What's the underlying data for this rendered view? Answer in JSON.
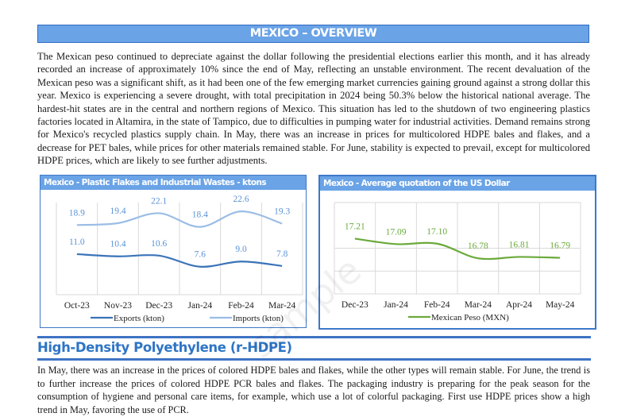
{
  "overview": {
    "title": "MEXICO – OVERVIEW",
    "paragraph": "The Mexican peso continued to depreciate against the dollar following the presidential elections earlier this month, and it has already recorded an increase of approximately 10% since the end of May, reflecting an unstable environment. The recent devaluation of the Mexican peso was a significant shift, as it had been one of the few emerging market currencies gaining ground against a strong dollar this year. Mexico is experiencing a severe drought, with total precipitation in 2024 being 50.3% below the historical national average. The hardest-hit states are in the central and northern regions of Mexico. This situation has led to the shutdown of two engineering plastics factories located in Altamira, in the state of Tampico, due to difficulties in pumping water for industrial activities. Demand remains strong for Mexico's recycled plastics supply chain. In May, there was an increase in prices for multicolored HDPE bales and flakes, and a decrease for PET bales, while prices for other materials remained stable. For June, stability is expected to prevail, except for multicolored HDPE prices, which are likely to see further adjustments."
  },
  "chart_data": [
    {
      "type": "line",
      "title": "Mexico - Plastic Flakes and Industrial Wastes - ktons",
      "categories": [
        "Oct-23",
        "Nov-23",
        "Dec-23",
        "Jan-24",
        "Feb-24",
        "Mar-24"
      ],
      "series": [
        {
          "name": "Exports (kton)",
          "values": [
            11.0,
            10.4,
            10.6,
            7.6,
            9.0,
            7.8
          ],
          "color": "#3a73b8"
        },
        {
          "name": "Imports (kton)",
          "values": [
            18.9,
            19.4,
            22.1,
            18.4,
            22.6,
            19.3
          ],
          "color": "#9bbde6"
        }
      ],
      "ylim": [
        0,
        25
      ],
      "grid": "vertical",
      "legend": "bottom",
      "label_color": "#5a93d6"
    },
    {
      "type": "line",
      "title": "Mexico - Average quotation of the US Dollar",
      "categories": [
        "Dec-23",
        "Jan-24",
        "Feb-24",
        "Mar-24",
        "Apr-24",
        "May-24"
      ],
      "series": [
        {
          "name": "Mexican Peso (MXN)",
          "values": [
            17.21,
            17.09,
            17.1,
            16.78,
            16.81,
            16.79
          ],
          "color": "#6aaa3a"
        }
      ],
      "ylim": [
        16,
        18
      ],
      "grid": "both",
      "legend": "bottom",
      "label_color": "#6aaa3a"
    }
  ],
  "hdpe": {
    "title": "High-Density Polyethylene (r-HDPE)",
    "paragraph": "In May, there was an increase in the prices of colored HDPE bales and flakes, while the other types will remain stable. For June, the trend is to further increase the prices of colored HDPE PCR bales and flakes. The packaging industry is preparing for the peak season for the consumption of hygiene and personal care items, for example, which use a lot of colorful packaging. First use HDPE prices show a high trend in May, favoring the use of PCR."
  }
}
